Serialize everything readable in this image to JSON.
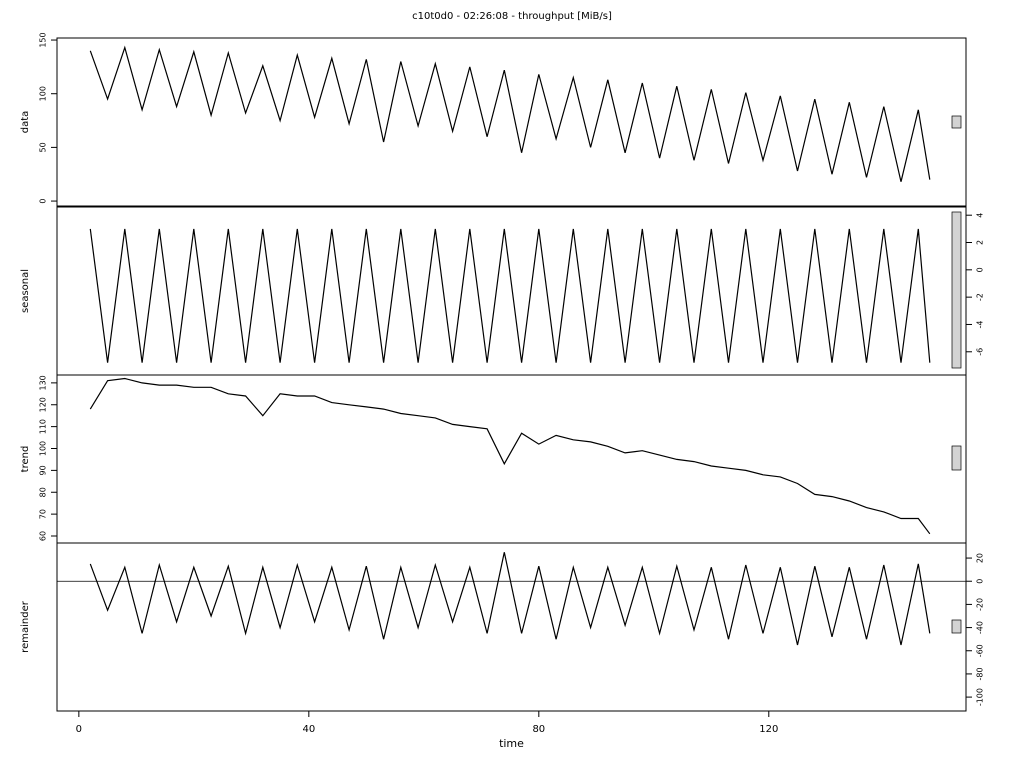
{
  "chart_data": [
    {
      "type": "line",
      "title": "c10t0d0 - 02:26:08 - throughput [MiB/s]",
      "ylabel": "data",
      "yaxis_side": "left",
      "color": "#000000",
      "xlim": [
        -3.8,
        154.3
      ],
      "ylim": [
        -4.6,
        151.9
      ],
      "yticks": [
        0,
        50,
        100,
        150
      ],
      "x": [
        2,
        5,
        8,
        11,
        14,
        17,
        20,
        23,
        26,
        29,
        32,
        35,
        38,
        41,
        44,
        47,
        50,
        53,
        56,
        59,
        62,
        65,
        68,
        71,
        74,
        77,
        80,
        83,
        86,
        89,
        92,
        95,
        98,
        101,
        104,
        107,
        110,
        113,
        116,
        119,
        122,
        125,
        128,
        131,
        134,
        137,
        140,
        143,
        146,
        148
      ],
      "values": [
        140,
        95,
        143,
        85,
        141,
        88,
        139,
        80,
        138,
        82,
        126,
        75,
        136,
        78,
        133,
        72,
        132,
        55,
        130,
        70,
        128,
        65,
        125,
        60,
        122,
        45,
        118,
        58,
        115,
        50,
        113,
        45,
        110,
        40,
        107,
        38,
        104,
        35,
        101,
        38,
        98,
        28,
        95,
        25,
        92,
        22,
        88,
        18,
        85,
        20
      ]
    },
    {
      "type": "line",
      "ylabel": "seasonal",
      "yaxis_side": "right",
      "color": "#000000",
      "xlim": [
        -3.8,
        154.3
      ],
      "ylim": [
        -7.7,
        4.6
      ],
      "yticks": [
        -6,
        -4,
        -2,
        0,
        2,
        4
      ],
      "x": [
        2,
        5,
        8,
        11,
        14,
        17,
        20,
        23,
        26,
        29,
        32,
        35,
        38,
        41,
        44,
        47,
        50,
        53,
        56,
        59,
        62,
        65,
        68,
        71,
        74,
        77,
        80,
        83,
        86,
        89,
        92,
        95,
        98,
        101,
        104,
        107,
        110,
        113,
        116,
        119,
        122,
        125,
        128,
        131,
        134,
        137,
        140,
        143,
        146,
        148
      ],
      "values": [
        3,
        -6.8,
        3,
        -6.8,
        3,
        -6.8,
        3,
        -6.8,
        3,
        -6.8,
        3,
        -6.8,
        3,
        -6.8,
        3,
        -6.8,
        3,
        -6.8,
        3,
        -6.8,
        3,
        -6.8,
        3,
        -6.8,
        3,
        -6.8,
        3,
        -6.8,
        3,
        -6.8,
        3,
        -6.8,
        3,
        -6.8,
        3,
        -6.8,
        3,
        -6.8,
        3,
        -6.8,
        3,
        -6.8,
        3,
        -6.8,
        3,
        -6.8,
        3,
        -6.8,
        3,
        -6.8
      ]
    },
    {
      "type": "line",
      "ylabel": "trend",
      "yaxis_side": "left",
      "color": "#000000",
      "xlim": [
        -3.8,
        154.3
      ],
      "ylim": [
        56.8,
        133.6
      ],
      "yticks": [
        60,
        70,
        80,
        90,
        100,
        110,
        120,
        130
      ],
      "x": [
        2,
        5,
        8,
        11,
        14,
        17,
        20,
        23,
        26,
        29,
        32,
        35,
        38,
        41,
        44,
        47,
        50,
        53,
        56,
        59,
        62,
        65,
        68,
        71,
        74,
        77,
        80,
        83,
        86,
        89,
        92,
        95,
        98,
        101,
        104,
        107,
        110,
        113,
        116,
        119,
        122,
        125,
        128,
        131,
        134,
        137,
        140,
        143,
        146,
        148
      ],
      "values": [
        118,
        131,
        132,
        130,
        129,
        129,
        128,
        128,
        125,
        124,
        115,
        125,
        124,
        124,
        121,
        120,
        119,
        118,
        116,
        115,
        114,
        111,
        110,
        109,
        93,
        107,
        102,
        106,
        104,
        103,
        101,
        98,
        99,
        97,
        95,
        94,
        92,
        91,
        90,
        88,
        87,
        84,
        79,
        78,
        76,
        73,
        71,
        68,
        68,
        61
      ]
    },
    {
      "type": "line",
      "ylabel": "remainder",
      "xlabel": "time",
      "yaxis_side": "right",
      "color": "#000000",
      "xlim": [
        -3.8,
        154.3
      ],
      "ylim": [
        -112,
        33
      ],
      "yticks": [
        -100,
        -80,
        -60,
        -40,
        -20,
        0,
        20
      ],
      "xticks": [
        0,
        40,
        80,
        120
      ],
      "x": [
        2,
        5,
        8,
        11,
        14,
        17,
        20,
        23,
        26,
        29,
        32,
        35,
        38,
        41,
        44,
        47,
        50,
        53,
        56,
        59,
        62,
        65,
        68,
        71,
        74,
        77,
        80,
        83,
        86,
        89,
        92,
        95,
        98,
        101,
        104,
        107,
        110,
        113,
        116,
        119,
        122,
        125,
        128,
        131,
        134,
        137,
        140,
        143,
        146,
        148
      ],
      "values": [
        15,
        -25,
        12,
        -45,
        14,
        -35,
        12,
        -30,
        13,
        -45,
        12,
        -40,
        14,
        -35,
        12,
        -42,
        13,
        -50,
        12,
        -40,
        14,
        -35,
        12,
        -45,
        25,
        -45,
        13,
        -50,
        12,
        -40,
        12,
        -38,
        12,
        -45,
        13,
        -42,
        12,
        -50,
        14,
        -45,
        12,
        -55,
        13,
        -48,
        12,
        -50,
        14,
        -55,
        15,
        -45
      ]
    }
  ]
}
